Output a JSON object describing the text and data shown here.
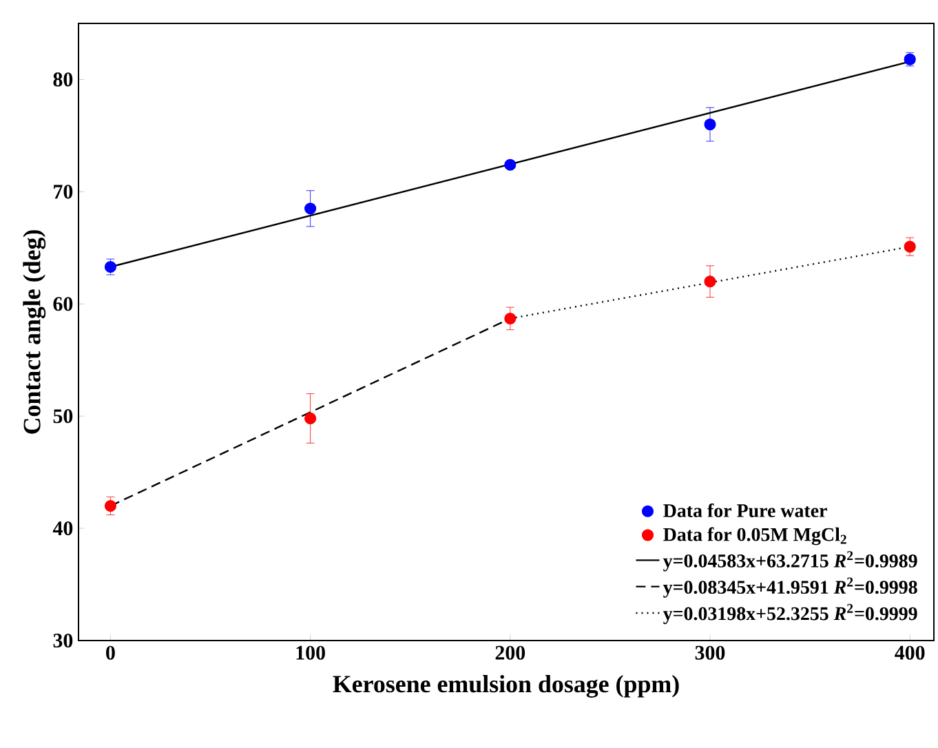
{
  "chart_data": {
    "type": "scatter",
    "xlabel": "Kerosene emulsion dosage (ppm)",
    "ylabel": "Contact angle (deg)",
    "xlim": [
      -16,
      412
    ],
    "ylim": [
      30,
      85
    ],
    "xticks": [
      0,
      100,
      200,
      300,
      400
    ],
    "yticks": [
      30,
      40,
      50,
      60,
      70,
      80
    ],
    "legend": "bottom right",
    "series": [
      {
        "name": "Data for Pure water",
        "marker": "circle",
        "color": "#0000ff",
        "x": [
          0,
          100,
          200,
          300,
          400
        ],
        "values": [
          63.3,
          68.5,
          72.4,
          76.0,
          81.8
        ],
        "errors": [
          0.7,
          1.6,
          0.3,
          1.5,
          0.6
        ]
      },
      {
        "name": "Data for 0.05M MgCl$_{2}$",
        "marker": "circle",
        "color": "#ff0000",
        "x": [
          0,
          100,
          200,
          300,
          400
        ],
        "values": [
          42.0,
          49.8,
          58.7,
          62.0,
          65.1
        ],
        "errors": [
          0.8,
          2.2,
          1.0,
          1.4,
          0.8
        ]
      },
      {
        "name": "y=0.04583x+63.2715  *R*$^{2}$=0.9989",
        "type": "line",
        "line_style": "solid",
        "color": "#000000",
        "x": [
          0,
          400
        ],
        "values": [
          63.3,
          81.6
        ]
      },
      {
        "name": "y=0.08345x+41.9591  *R*$^{2}$=0.9998",
        "type": "line",
        "line_style": "dashed",
        "color": "#000000",
        "x": [
          0,
          200
        ],
        "values": [
          42.0,
          58.7
        ]
      },
      {
        "name": "y=0.03198x+52.3255  *R*$^{2}$=0.9999",
        "type": "line",
        "line_style": "dotted",
        "color": "#000000",
        "x": [
          200,
          400
        ],
        "values": [
          58.7,
          65.1
        ]
      }
    ]
  }
}
